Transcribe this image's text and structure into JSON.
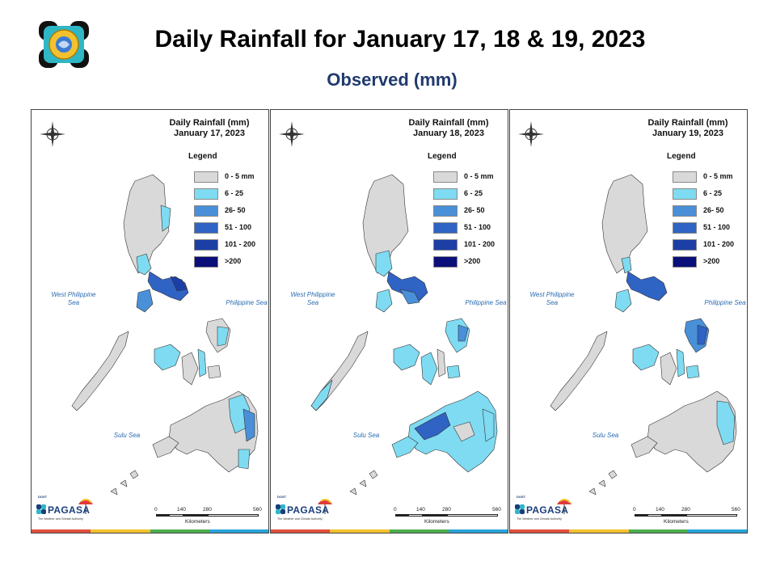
{
  "header": {
    "title": "Daily Rainfall for January 17, 18 & 19, 2023",
    "subtitle": "Observed (mm)"
  },
  "legend": {
    "title": "Legend",
    "items": [
      {
        "label": "0 - 5 mm",
        "color": "#d9d9d9"
      },
      {
        "label": "6 - 25",
        "color": "#7fdbf2"
      },
      {
        "label": "26- 50",
        "color": "#4a90d9"
      },
      {
        "label": "51 - 100",
        "color": "#2f63c4"
      },
      {
        "label": "101 - 200",
        "color": "#1c3fa6"
      },
      {
        "label": ">200",
        "color": "#0a0f7a"
      }
    ]
  },
  "sea_labels": {
    "west": "West Philippine Sea",
    "philippine": "Philippine Sea",
    "sulu": "Sulu Sea"
  },
  "compass": {
    "n": "N",
    "s": "S",
    "e": "E",
    "w": "W"
  },
  "scale": {
    "ticks": [
      "0",
      "140",
      "280",
      "560"
    ],
    "units": "Kilometers"
  },
  "branding": {
    "agency_prefix": "DOST",
    "agency_name": "PAGASA",
    "tagline": "The Weather and Climate Authority"
  },
  "panels": [
    {
      "title": "Daily Rainfall (mm)",
      "date": "January 17, 2023",
      "regions": {
        "northeast_luzon": "light",
        "central_luzon": "light",
        "bicol": "moderate",
        "mimaropa": "light",
        "eastern_visayas": "light",
        "western_visayas": "light",
        "northern_mindanao": "light",
        "eastern_mindanao": "light",
        "central_mindanao": "none",
        "southern_mindanao": "none",
        "zamboanga": "none",
        "palawan": "none"
      }
    },
    {
      "title": "Daily Rainfall (mm)",
      "date": "January 18, 2023",
      "regions": {
        "northeast_luzon": "none",
        "central_luzon": "light",
        "bicol": "moderate",
        "mimaropa": "light",
        "eastern_visayas": "light",
        "western_visayas": "light",
        "northern_mindanao": "moderate",
        "eastern_mindanao": "light",
        "central_mindanao": "light",
        "southern_mindanao": "light",
        "zamboanga": "light",
        "palawan": "light"
      }
    },
    {
      "title": "Daily Rainfall (mm)",
      "date": "January 19, 2023",
      "regions": {
        "northeast_luzon": "none",
        "central_luzon": "light",
        "bicol": "moderate",
        "mimaropa": "light",
        "eastern_visayas": "moderate",
        "western_visayas": "light",
        "northern_mindanao": "light",
        "eastern_mindanao": "light",
        "central_mindanao": "none",
        "southern_mindanao": "none",
        "zamboanga": "none",
        "palawan": "none"
      }
    }
  ]
}
